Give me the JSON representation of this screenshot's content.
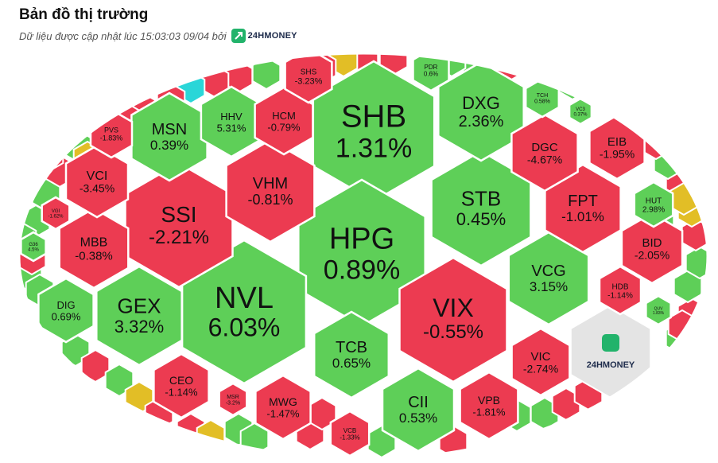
{
  "header": {
    "title": "Bản đồ thị trường",
    "updated_text": "Dữ liệu được cập nhật lúc 15:03:03 09/04 bởi",
    "brand_name": "24HMONEY"
  },
  "legend_colors": {
    "up": "#5ecf58",
    "down": "#ec3b51",
    "flat": "#e2be26",
    "ceiling": "#2ad6d8",
    "logo_tile": "#e4e4e4"
  },
  "chart_data": {
    "type": "treemap",
    "center_logo": "24HMONEY",
    "tiles": [
      {
        "ticker": "SHB",
        "change": "1.31%",
        "value": 1.31
      },
      {
        "ticker": "HPG",
        "change": "0.89%",
        "value": 0.89
      },
      {
        "ticker": "NVL",
        "change": "6.03%",
        "value": 6.03
      },
      {
        "ticker": "SSI",
        "change": "-2.21%",
        "value": -2.21
      },
      {
        "ticker": "VIX",
        "change": "-0.55%",
        "value": -0.55
      },
      {
        "ticker": "STB",
        "change": "0.45%",
        "value": 0.45
      },
      {
        "ticker": "GEX",
        "change": "3.32%",
        "value": 3.32
      },
      {
        "ticker": "VHM",
        "change": "-0.81%",
        "value": -0.81
      },
      {
        "ticker": "DXG",
        "change": "2.36%",
        "value": 2.36
      },
      {
        "ticker": "MSN",
        "change": "0.39%",
        "value": 0.39
      },
      {
        "ticker": "TCB",
        "change": "0.65%",
        "value": 0.65
      },
      {
        "ticker": "CII",
        "change": "0.53%",
        "value": 0.53
      },
      {
        "ticker": "VCG",
        "change": "3.15%",
        "value": 3.15
      },
      {
        "ticker": "FPT",
        "change": "-1.01%",
        "value": -1.01
      },
      {
        "ticker": "MBB",
        "change": "-0.38%",
        "value": -0.38
      },
      {
        "ticker": "VCI",
        "change": "-3.45%",
        "value": -3.45
      },
      {
        "ticker": "HHV",
        "change": "5.31%",
        "value": 5.31
      },
      {
        "ticker": "HCM",
        "change": "-0.79%",
        "value": -0.79
      },
      {
        "ticker": "DGC",
        "change": "-4.67%",
        "value": -4.67
      },
      {
        "ticker": "EIB",
        "change": "-1.95%",
        "value": -1.95
      },
      {
        "ticker": "BID",
        "change": "-2.05%",
        "value": -2.05
      },
      {
        "ticker": "VIC",
        "change": "-2.74%",
        "value": -2.74
      },
      {
        "ticker": "VPB",
        "change": "-1.81%",
        "value": -1.81
      },
      {
        "ticker": "CEO",
        "change": "-1.14%",
        "value": -1.14
      },
      {
        "ticker": "MWG",
        "change": "-1.47%",
        "value": -1.47
      },
      {
        "ticker": "DIG",
        "change": "0.69%",
        "value": 0.69
      },
      {
        "ticker": "HUT",
        "change": "2.98%",
        "value": 2.98
      },
      {
        "ticker": "HDB",
        "change": "-1.14%",
        "value": -1.14
      },
      {
        "ticker": "PVS",
        "change": "-1.83%",
        "value": -1.83
      },
      {
        "ticker": "SHS",
        "change": "-3.23%",
        "value": -3.23
      },
      {
        "ticker": "PDR",
        "change": "0.6%",
        "value": 0.6
      },
      {
        "ticker": "TCH",
        "change": "0.58%",
        "value": 0.58
      },
      {
        "ticker": "VC3",
        "change": "0.37%",
        "value": 0.37
      },
      {
        "ticker": "MSR",
        "change": "-3.2%",
        "value": -3.2
      },
      {
        "ticker": "VCB",
        "change": "-1.33%",
        "value": -1.33
      },
      {
        "ticker": "VGI",
        "change": "-1.62%",
        "value": -1.62
      },
      {
        "ticker": "G36",
        "change": "4.5%",
        "value": 4.5
      },
      {
        "ticker": "QUV",
        "change": "1.83%",
        "value": 1.83
      }
    ]
  }
}
